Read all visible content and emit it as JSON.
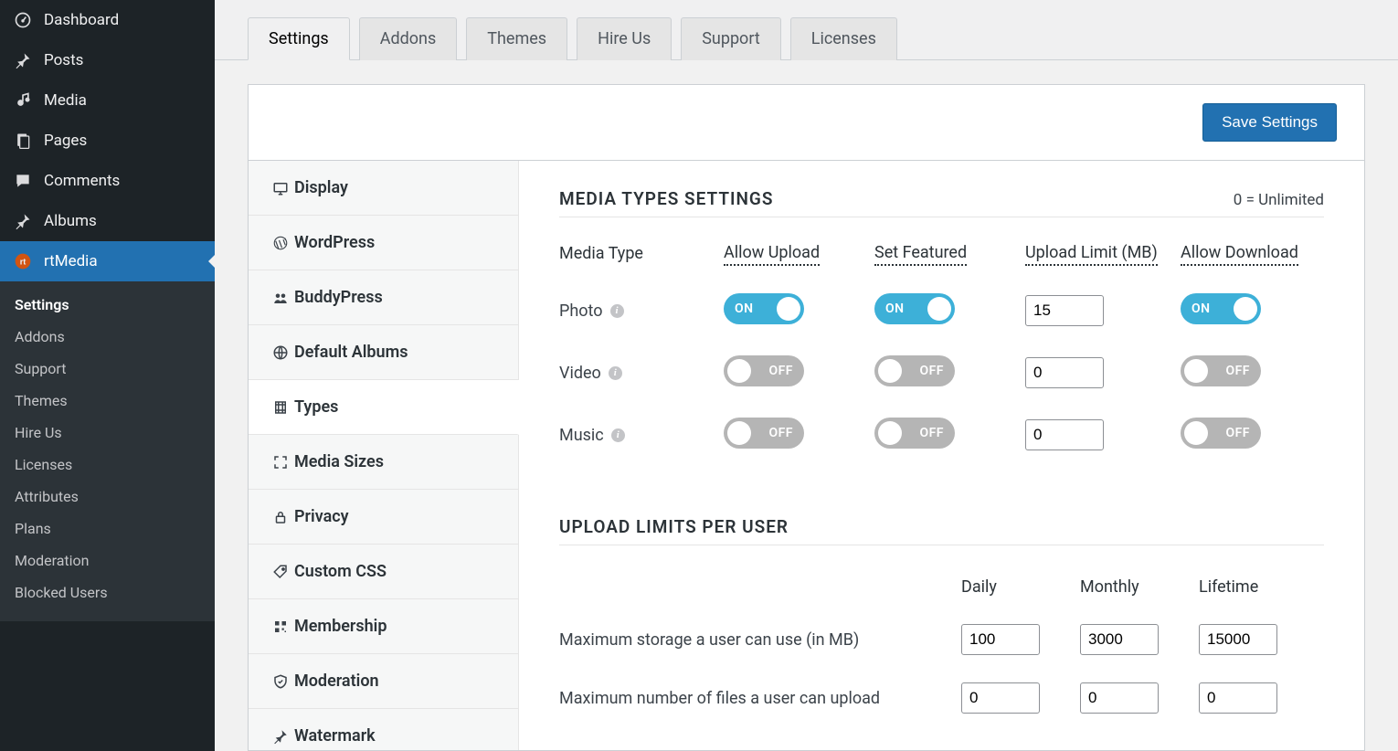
{
  "wp_sidebar": {
    "items": [
      {
        "label": "Dashboard",
        "icon": "dashboard-icon",
        "active": false
      },
      {
        "label": "Posts",
        "icon": "pin-icon",
        "active": false
      },
      {
        "label": "Media",
        "icon": "media-icon",
        "active": false
      },
      {
        "label": "Pages",
        "icon": "pages-icon",
        "active": false
      },
      {
        "label": "Comments",
        "icon": "comments-icon",
        "active": false
      },
      {
        "label": "Albums",
        "icon": "pin-icon",
        "active": false
      },
      {
        "label": "rtMedia",
        "icon": "rt-icon",
        "active": true
      }
    ],
    "submenu": [
      {
        "label": "Settings",
        "current": true
      },
      {
        "label": "Addons",
        "current": false
      },
      {
        "label": "Support",
        "current": false
      },
      {
        "label": "Themes",
        "current": false
      },
      {
        "label": "Hire Us",
        "current": false
      },
      {
        "label": "Licenses",
        "current": false
      },
      {
        "label": "Attributes",
        "current": false
      },
      {
        "label": "Plans",
        "current": false
      },
      {
        "label": "Moderation",
        "current": false
      },
      {
        "label": "Blocked Users",
        "current": false
      }
    ]
  },
  "tabs": [
    {
      "label": "Settings",
      "active": true
    },
    {
      "label": "Addons",
      "active": false
    },
    {
      "label": "Themes",
      "active": false
    },
    {
      "label": "Hire Us",
      "active": false
    },
    {
      "label": "Support",
      "active": false
    },
    {
      "label": "Licenses",
      "active": false
    }
  ],
  "save_button": "Save Settings",
  "settings_nav": [
    {
      "label": "Display",
      "icon": "display-icon",
      "active": false
    },
    {
      "label": "WordPress",
      "icon": "wordpress-icon",
      "active": false
    },
    {
      "label": "BuddyPress",
      "icon": "buddypress-icon",
      "active": false
    },
    {
      "label": "Default Albums",
      "icon": "globe-icon",
      "active": false
    },
    {
      "label": "Types",
      "icon": "film-icon",
      "active": true
    },
    {
      "label": "Media Sizes",
      "icon": "expand-icon",
      "active": false
    },
    {
      "label": "Privacy",
      "icon": "lock-icon",
      "active": false
    },
    {
      "label": "Custom CSS",
      "icon": "tag-icon",
      "active": false
    },
    {
      "label": "Membership",
      "icon": "qr-icon",
      "active": false
    },
    {
      "label": "Moderation",
      "icon": "shield-icon",
      "active": false
    },
    {
      "label": "Watermark",
      "icon": "pin-icon",
      "active": false
    }
  ],
  "media_types": {
    "title": "MEDIA TYPES SETTINGS",
    "hint": "0 = Unlimited",
    "columns": [
      "Media Type",
      "Allow Upload",
      "Set Featured",
      "Upload Limit (MB)",
      "Allow Download"
    ],
    "rows": [
      {
        "name": "Photo",
        "allow_upload": true,
        "set_featured": true,
        "upload_limit": "15",
        "allow_download": true
      },
      {
        "name": "Video",
        "allow_upload": false,
        "set_featured": false,
        "upload_limit": "0",
        "allow_download": false
      },
      {
        "name": "Music",
        "allow_upload": false,
        "set_featured": false,
        "upload_limit": "0",
        "allow_download": false
      }
    ]
  },
  "upload_limits": {
    "title": "UPLOAD LIMITS PER USER",
    "columns": [
      "Daily",
      "Monthly",
      "Lifetime"
    ],
    "rows": [
      {
        "label": "Maximum storage a user can use (in MB)",
        "daily": "100",
        "monthly": "3000",
        "lifetime": "15000"
      },
      {
        "label": "Maximum number of files a user can upload",
        "daily": "0",
        "monthly": "0",
        "lifetime": "0"
      }
    ]
  },
  "toggle_text": {
    "on": "ON",
    "off": "OFF"
  },
  "colors": {
    "wp_sidebar_bg": "#1d2327",
    "accent": "#2271b1",
    "toggle_on": "#3db0d8",
    "toggle_off": "#b5b5b5"
  }
}
